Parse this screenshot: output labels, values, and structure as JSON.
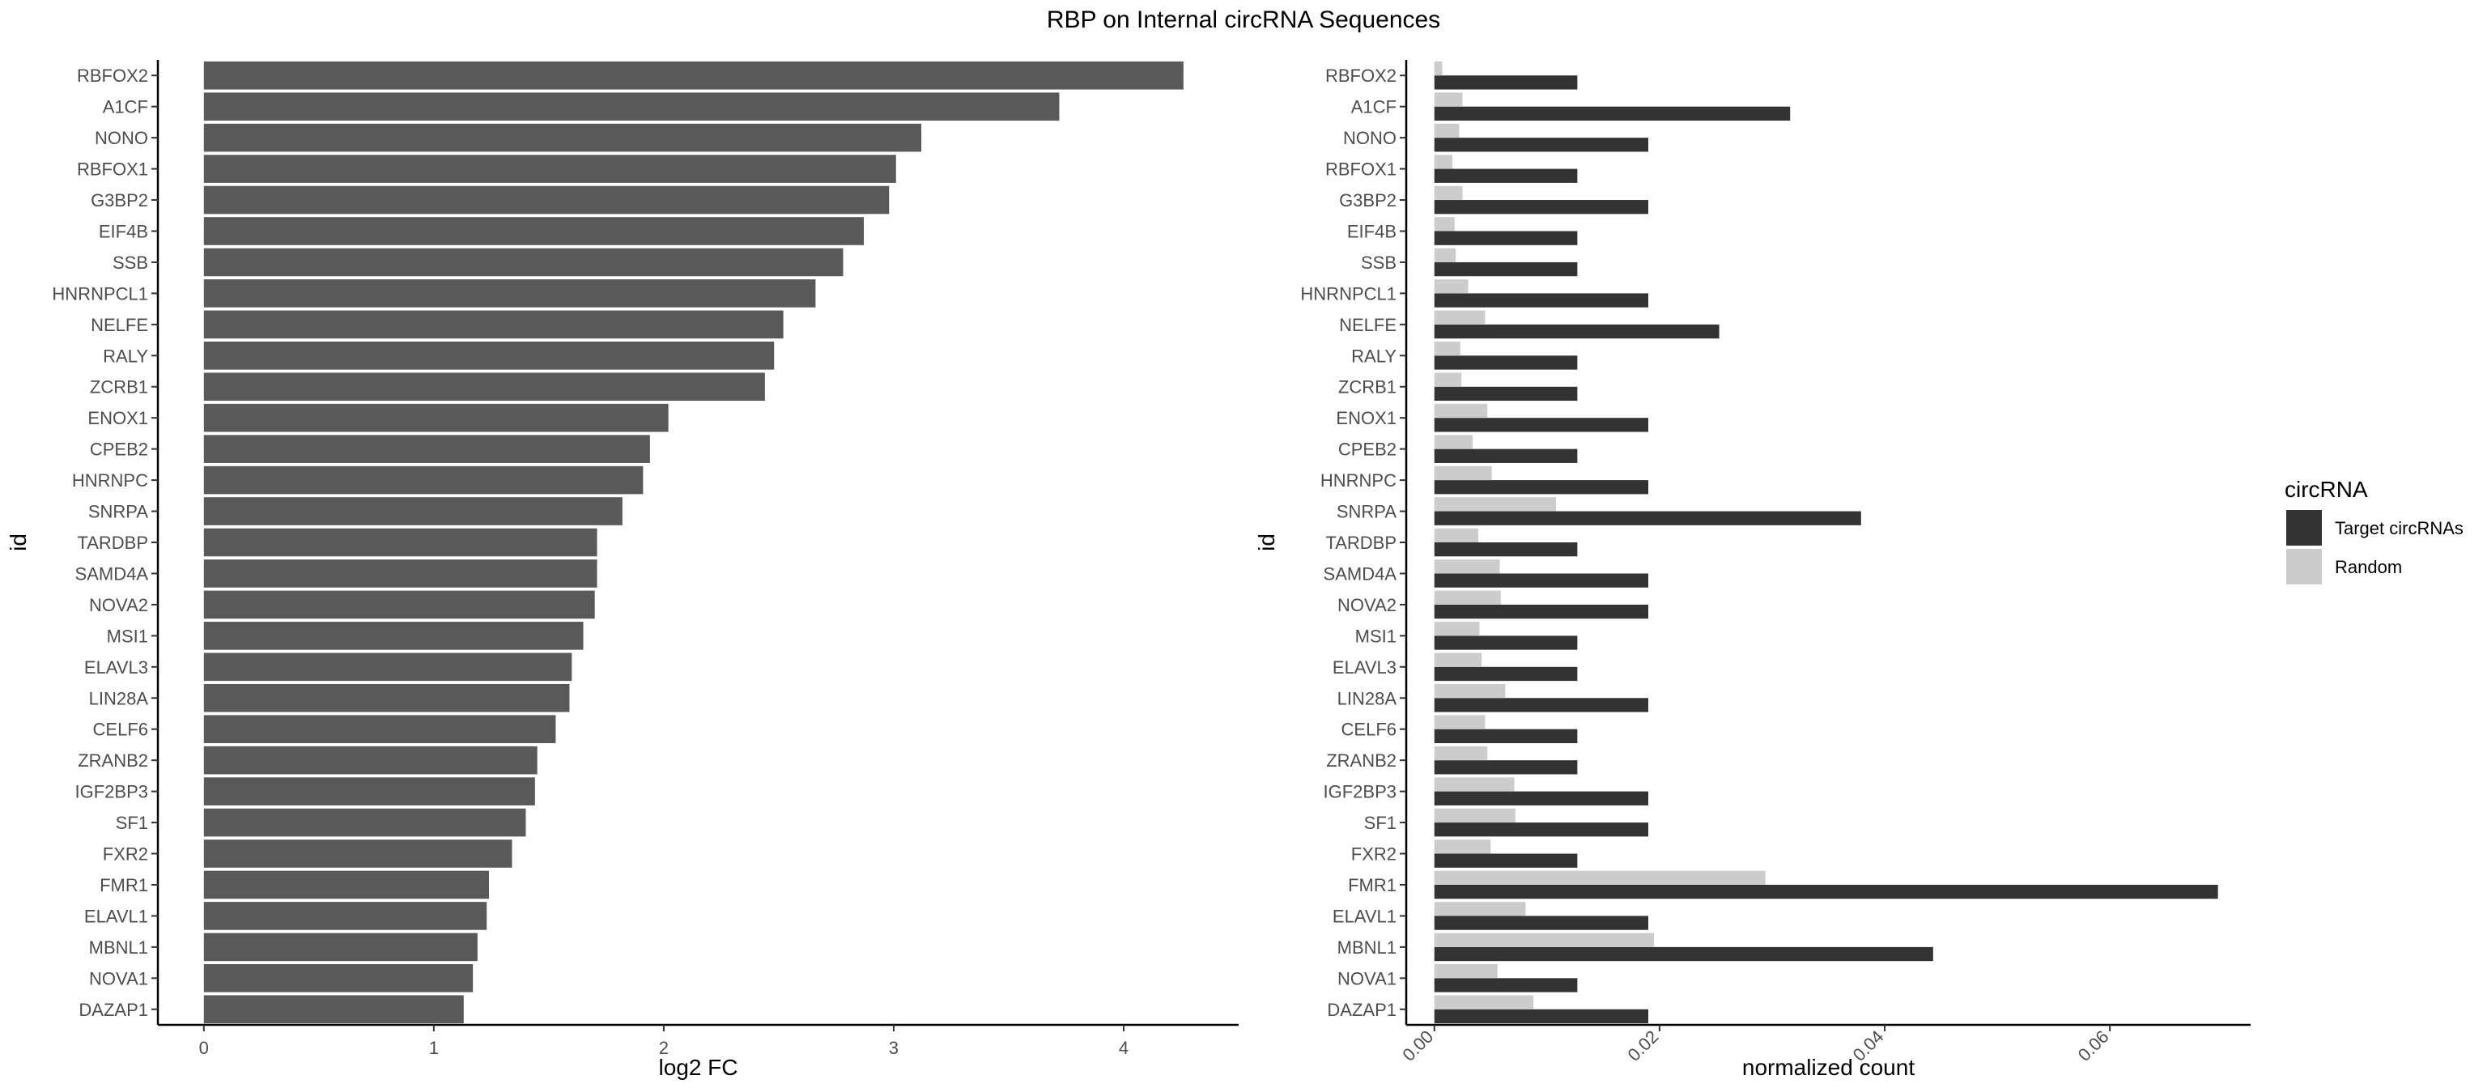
{
  "chart_data": [
    {
      "type": "bar",
      "orientation": "horizontal",
      "title": "RBP on Internal circRNA Sequences",
      "xlabel": "log2 FC",
      "ylabel": "id",
      "xlim": [
        -0.2,
        4.5
      ],
      "xticks": [
        0,
        1,
        2,
        3,
        4
      ],
      "grid": false,
      "bar_color": "#595959",
      "categories": [
        "RBFOX2",
        "A1CF",
        "NONO",
        "RBFOX1",
        "G3BP2",
        "EIF4B",
        "SSB",
        "HNRNPCL1",
        "NELFE",
        "RALY",
        "ZCRB1",
        "ENOX1",
        "CPEB2",
        "HNRNPC",
        "SNRPA",
        "TARDBP",
        "SAMD4A",
        "NOVA2",
        "MSI1",
        "ELAVL3",
        "LIN28A",
        "CELF6",
        "ZRANB2",
        "IGF2BP3",
        "SF1",
        "FXR2",
        "FMR1",
        "ELAVL1",
        "MBNL1",
        "NOVA1",
        "DAZAP1"
      ],
      "values": [
        4.26,
        3.72,
        3.12,
        3.01,
        2.98,
        2.87,
        2.78,
        2.66,
        2.52,
        2.48,
        2.44,
        2.02,
        1.94,
        1.91,
        1.82,
        1.71,
        1.71,
        1.7,
        1.65,
        1.6,
        1.59,
        1.53,
        1.45,
        1.44,
        1.4,
        1.34,
        1.24,
        1.23,
        1.19,
        1.17,
        1.13
      ]
    },
    {
      "type": "bar",
      "orientation": "horizontal",
      "xlabel": "normalized count",
      "ylabel": "id",
      "xlim": [
        -0.0025,
        0.0725
      ],
      "xticks": [
        0.0,
        0.02,
        0.04,
        0.06
      ],
      "xtick_labels": [
        "0.00",
        "0.02",
        "0.04",
        "0.06"
      ],
      "grid": false,
      "legend": {
        "title": "circRNA",
        "placement": "right"
      },
      "categories": [
        "RBFOX2",
        "A1CF",
        "NONO",
        "RBFOX1",
        "G3BP2",
        "EIF4B",
        "SSB",
        "HNRNPCL1",
        "NELFE",
        "RALY",
        "ZCRB1",
        "ENOX1",
        "CPEB2",
        "HNRNPC",
        "SNRPA",
        "TARDBP",
        "SAMD4A",
        "NOVA2",
        "MSI1",
        "ELAVL3",
        "LIN28A",
        "CELF6",
        "ZRANB2",
        "IGF2BP3",
        "SF1",
        "FXR2",
        "FMR1",
        "ELAVL1",
        "MBNL1",
        "NOVA1",
        "DAZAP1"
      ],
      "series": [
        {
          "name": "Target circRNAs",
          "color": "#333333",
          "values": [
            0.0127,
            0.0316,
            0.019,
            0.0127,
            0.019,
            0.0127,
            0.0127,
            0.019,
            0.0253,
            0.0127,
            0.0127,
            0.019,
            0.0127,
            0.019,
            0.0379,
            0.0127,
            0.019,
            0.019,
            0.0127,
            0.0127,
            0.019,
            0.0127,
            0.0127,
            0.019,
            0.019,
            0.0127,
            0.0696,
            0.019,
            0.0443,
            0.0127,
            0.019
          ]
        },
        {
          "name": "Random",
          "color": "#cccccc",
          "values": [
            0.0007,
            0.0025,
            0.0022,
            0.0016,
            0.0025,
            0.0018,
            0.0019,
            0.003,
            0.0045,
            0.0023,
            0.0024,
            0.0047,
            0.0034,
            0.0051,
            0.0108,
            0.0039,
            0.0058,
            0.0059,
            0.004,
            0.0042,
            0.0063,
            0.0045,
            0.0047,
            0.0071,
            0.0072,
            0.005,
            0.0294,
            0.0081,
            0.0195,
            0.0056,
            0.0088
          ]
        }
      ]
    }
  ]
}
